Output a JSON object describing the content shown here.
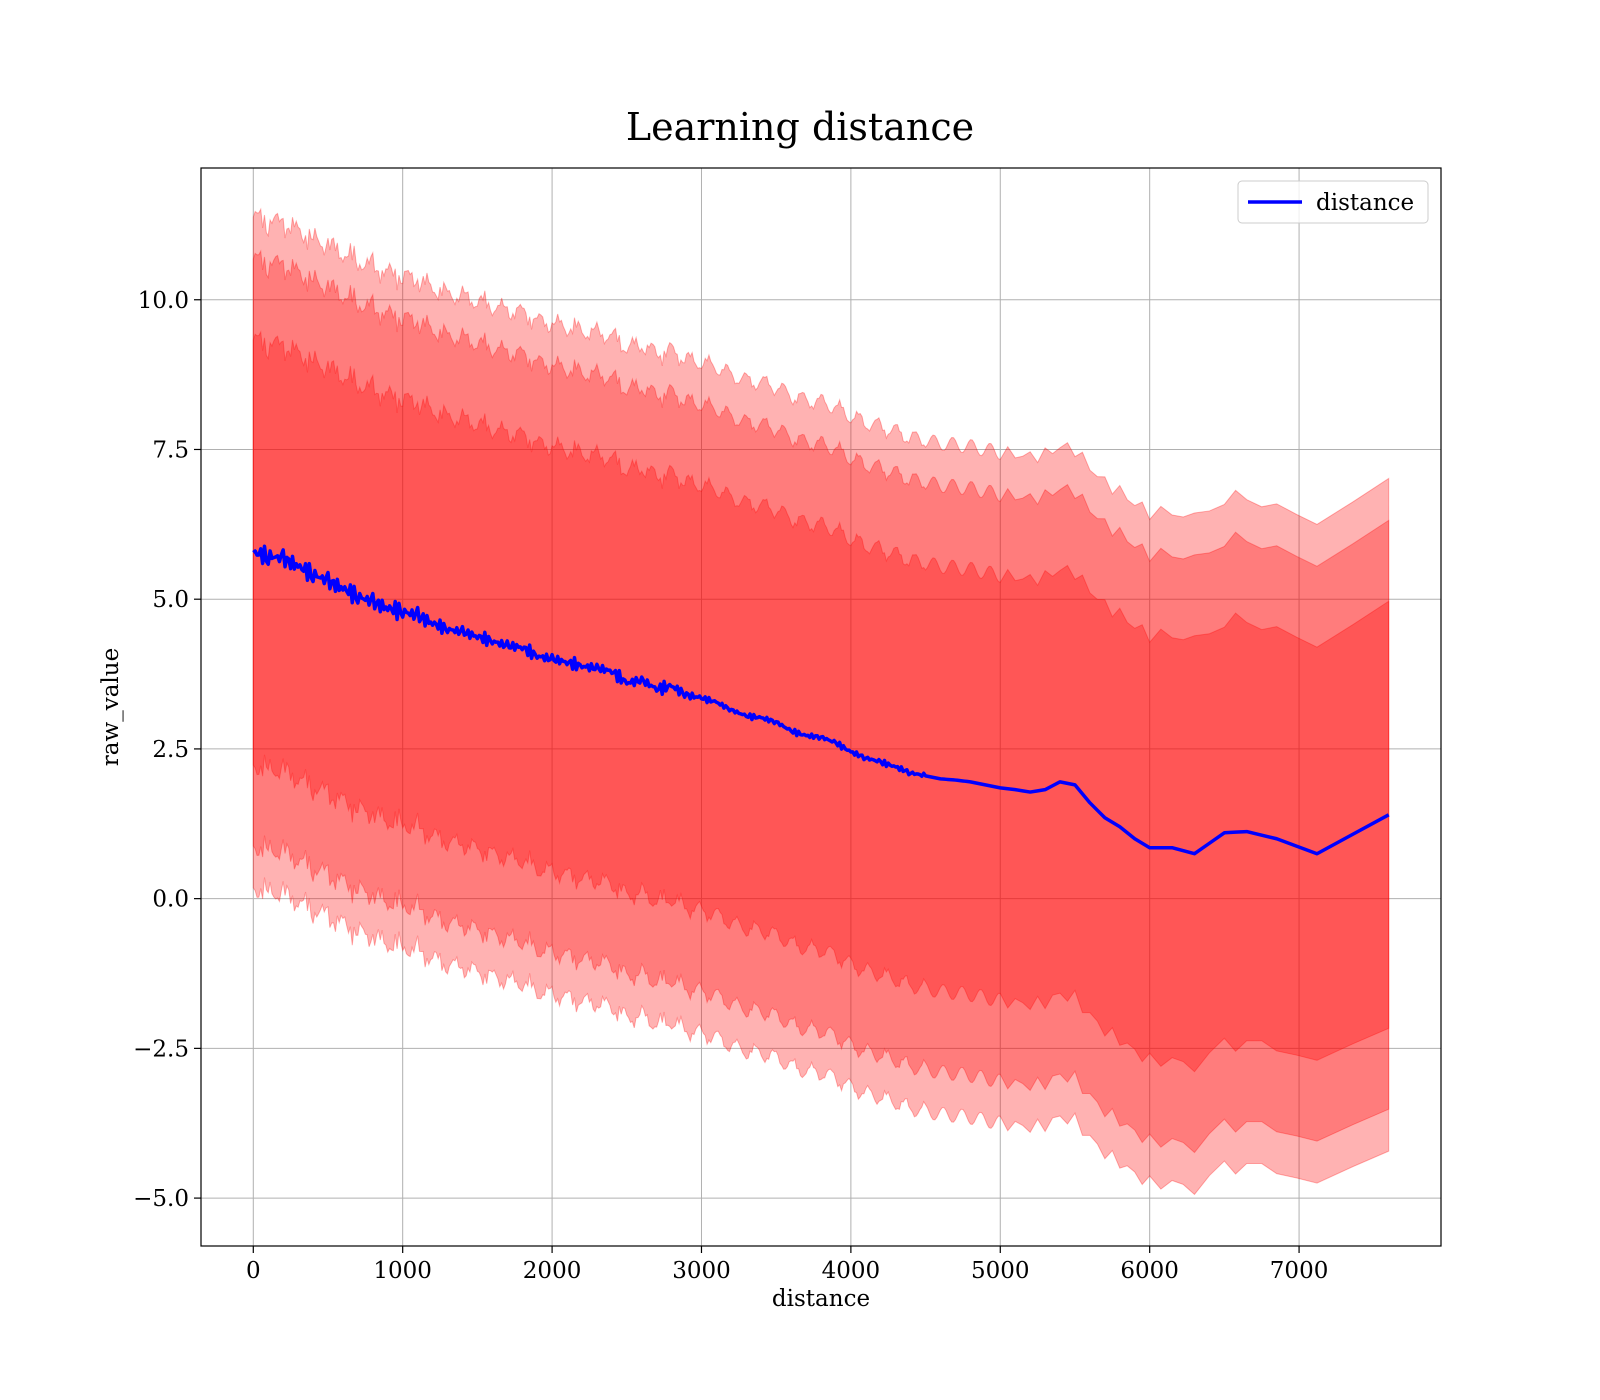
{
  "chart_data": {
    "type": "line",
    "title": "Learning distance",
    "xlabel": "distance",
    "ylabel": "raw_value",
    "xlim": [
      -350,
      7950
    ],
    "ylim": [
      -5.8,
      12.2
    ],
    "xticks": [
      0,
      1000,
      2000,
      3000,
      4000,
      5000,
      6000,
      7000
    ],
    "xtick_labels": [
      "0",
      "1000",
      "2000",
      "3000",
      "4000",
      "5000",
      "6000",
      "7000"
    ],
    "yticks": [
      -5.0,
      -2.5,
      0.0,
      2.5,
      5.0,
      7.5,
      10.0
    ],
    "ytick_labels": [
      "−5.0",
      "−2.5",
      "0.0",
      "2.5",
      "5.0",
      "7.5",
      "10.0"
    ],
    "grid": true,
    "legend": {
      "location": "top-right",
      "entries": [
        "distance"
      ]
    },
    "colors": {
      "line": "#0000ff",
      "band": "#ff0000"
    },
    "band_offsets": [
      3.55,
      4.9,
      5.6
    ],
    "series": [
      {
        "name": "distance",
        "x": [
          0,
          100,
          200,
          300,
          400,
          500,
          600,
          700,
          800,
          900,
          1000,
          1100,
          1200,
          1300,
          1400,
          1500,
          1600,
          1700,
          1800,
          1900,
          2000,
          2100,
          2200,
          2300,
          2400,
          2500,
          2600,
          2700,
          2800,
          2900,
          3000,
          3100,
          3200,
          3300,
          3400,
          3500,
          3600,
          3700,
          3800,
          3900,
          4000,
          4100,
          4200,
          4300,
          4400,
          4500,
          4600,
          4700,
          4800,
          4900,
          5000,
          5100,
          5200,
          5300,
          5400,
          5500,
          5600,
          5700,
          5800,
          5900,
          6000,
          6150,
          6300,
          6500,
          6650,
          6850,
          7120,
          7600
        ],
        "y": [
          5.78,
          5.72,
          5.68,
          5.55,
          5.42,
          5.3,
          5.18,
          5.05,
          4.95,
          4.85,
          4.8,
          4.72,
          4.6,
          4.5,
          4.45,
          4.38,
          4.3,
          4.22,
          4.2,
          4.05,
          4.0,
          3.95,
          3.88,
          3.85,
          3.8,
          3.6,
          3.65,
          3.5,
          3.55,
          3.4,
          3.35,
          3.28,
          3.15,
          3.05,
          3.02,
          2.95,
          2.8,
          2.72,
          2.7,
          2.6,
          2.45,
          2.35,
          2.28,
          2.2,
          2.1,
          2.05,
          2.0,
          1.98,
          1.95,
          1.9,
          1.85,
          1.82,
          1.78,
          1.82,
          1.95,
          1.9,
          1.6,
          1.35,
          1.2,
          1.0,
          0.85,
          0.85,
          0.75,
          1.1,
          1.12,
          1.0,
          0.75,
          1.4
        ]
      }
    ]
  }
}
